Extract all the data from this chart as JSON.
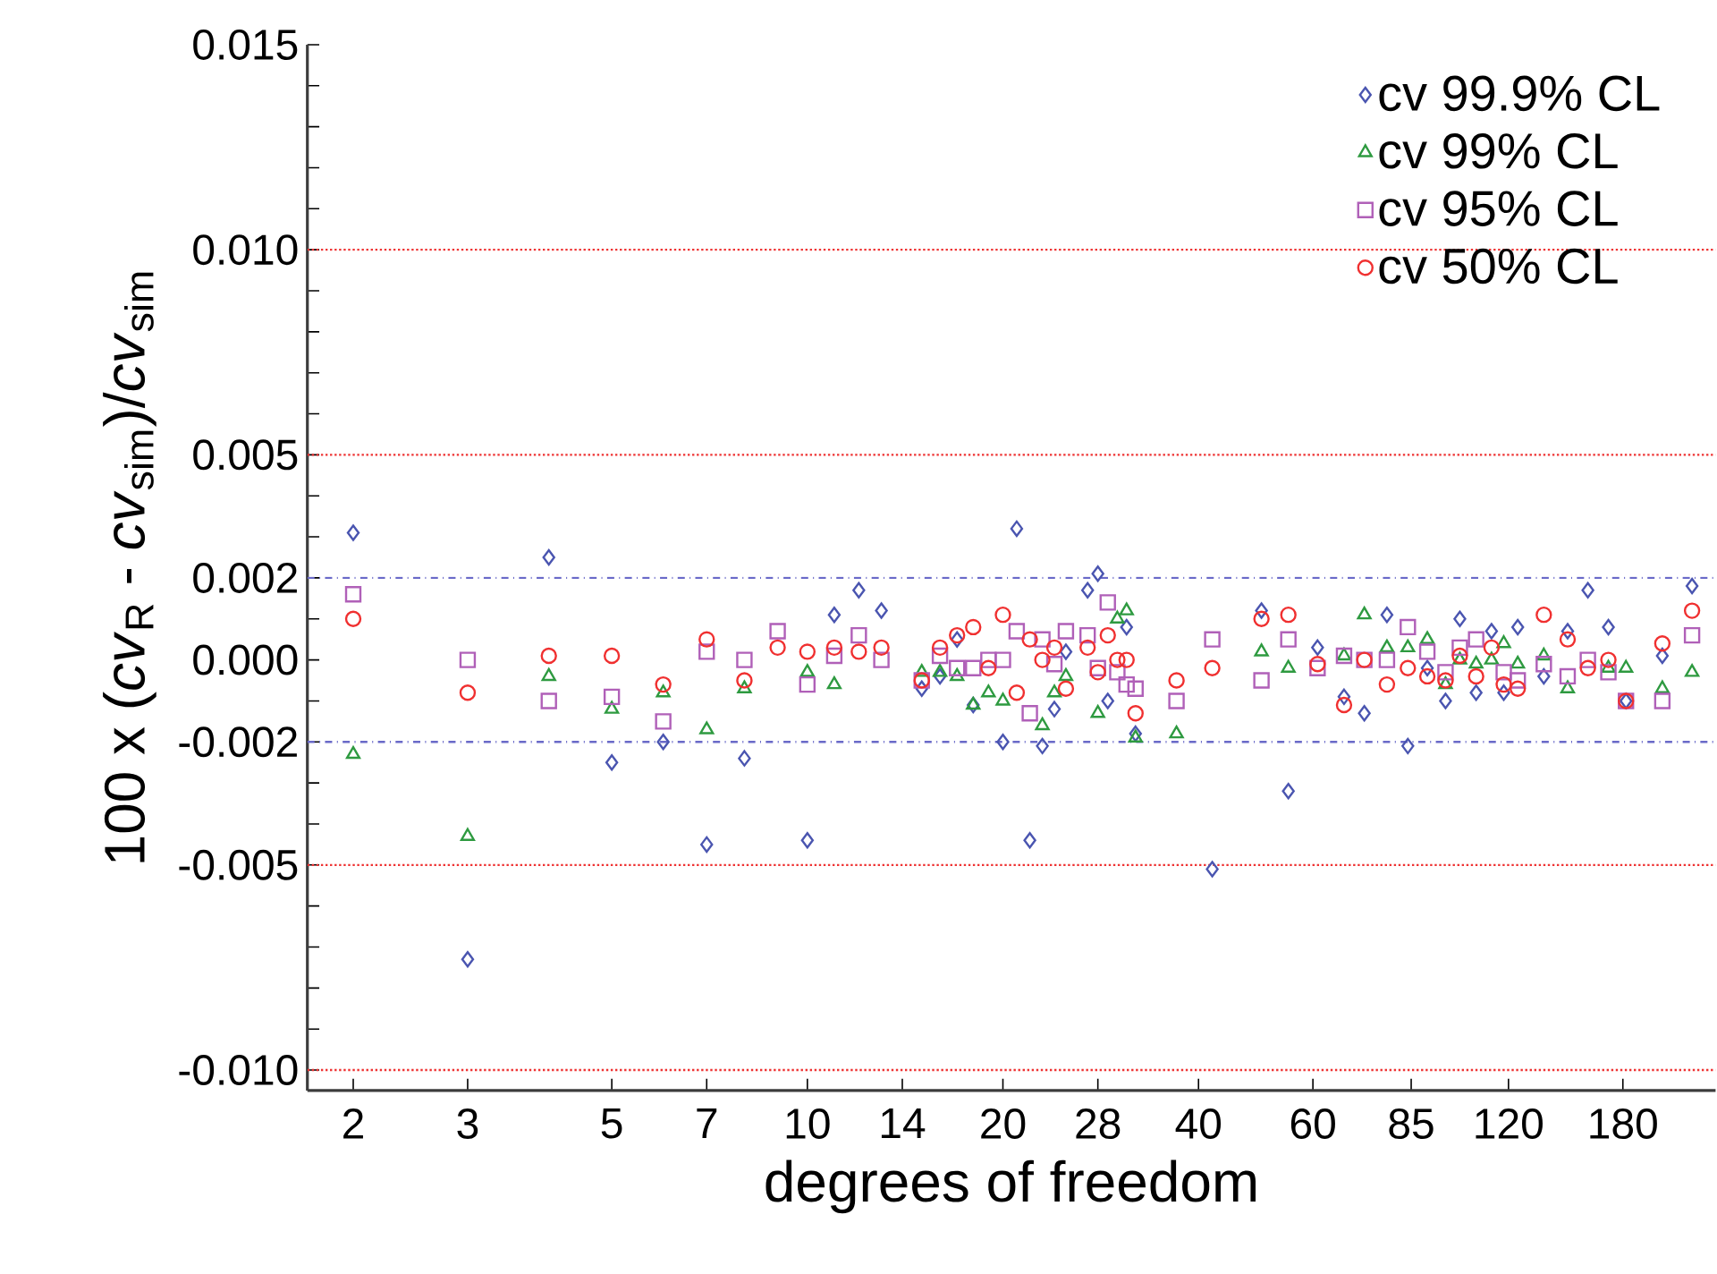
{
  "chart_data": {
    "type": "scatter",
    "xlabel": "degrees of freedom",
    "ylabel": "100 x (*cv*$_{R}$ - *cv*$_{sim}$)/*cv*$_{sim}$",
    "log": "x",
    "legend": "top right",
    "grid": false,
    "xlim": [
      1.7,
      250
    ],
    "ylim": [
      -0.0105,
      0.015
    ],
    "xticks": [
      2,
      3,
      5,
      7,
      10,
      14,
      20,
      28,
      40,
      60,
      85,
      120,
      180
    ],
    "yticks": [
      {
        "value": -0.01,
        "label": "-0.010"
      },
      {
        "value": -0.009,
        "label": null
      },
      {
        "value": -0.008,
        "label": null
      },
      {
        "value": -0.007,
        "label": null
      },
      {
        "value": -0.006,
        "label": null
      },
      {
        "value": -0.005,
        "label": "-0.005"
      },
      {
        "value": -0.004,
        "label": null
      },
      {
        "value": -0.003,
        "label": null
      },
      {
        "value": -0.002,
        "label": "-0.002"
      },
      {
        "value": -0.001,
        "label": null
      },
      {
        "value": 0.0,
        "label": "0.000"
      },
      {
        "value": 0.001,
        "label": null
      },
      {
        "value": 0.002,
        "label": "0.002"
      },
      {
        "value": 0.003,
        "label": null
      },
      {
        "value": 0.004,
        "label": null
      },
      {
        "value": 0.005,
        "label": "0.005"
      },
      {
        "value": 0.006,
        "label": null
      },
      {
        "value": 0.007,
        "label": null
      },
      {
        "value": 0.008,
        "label": null
      },
      {
        "value": 0.009,
        "label": null
      },
      {
        "value": 0.01,
        "label": "0.010"
      },
      {
        "value": 0.011,
        "label": null
      },
      {
        "value": 0.012,
        "label": null
      },
      {
        "value": 0.013,
        "label": null
      },
      {
        "value": 0.014,
        "label": null
      },
      {
        "value": 0.015,
        "label": "0.015"
      }
    ],
    "ref_lines": [
      {
        "axis": "y",
        "value": 0.01,
        "color": "#ee3333",
        "line_style": "dotted"
      },
      {
        "axis": "y",
        "value": 0.005,
        "color": "#ee3333",
        "line_style": "dotted"
      },
      {
        "axis": "y",
        "value": 0.002,
        "color": "#6a6ac8",
        "line_style": "dashdot"
      },
      {
        "axis": "y",
        "value": -0.002,
        "color": "#6a6ac8",
        "line_style": "dashdot"
      },
      {
        "axis": "y",
        "value": -0.005,
        "color": "#ee3333",
        "line_style": "dotted"
      },
      {
        "axis": "y",
        "value": -0.01,
        "color": "#ee3333",
        "line_style": "dotted"
      }
    ],
    "series": [
      {
        "name": "cv 99.9% CL",
        "color": "#4a55b0",
        "marker": "diamond",
        "x": [
          2,
          3,
          4,
          5,
          6,
          7,
          8,
          10,
          11,
          12,
          13,
          15,
          16,
          17,
          18,
          20,
          21,
          22,
          23,
          24,
          25,
          27,
          28,
          29,
          31,
          32,
          42,
          50,
          55,
          61,
          67,
          72,
          78,
          84,
          90,
          96,
          101,
          107,
          113,
          118,
          124,
          136,
          148,
          159,
          171,
          182,
          207,
          230
        ],
        "values": [
          0.0031,
          -0.0073,
          0.0025,
          -0.0025,
          -0.002,
          -0.0045,
          -0.0024,
          -0.0044,
          0.0011,
          0.0017,
          0.0012,
          -0.0007,
          -0.0004,
          0.0005,
          -0.0011,
          -0.002,
          0.0032,
          -0.0044,
          -0.0021,
          -0.0012,
          0.0002,
          0.0017,
          0.0021,
          -0.001,
          0.0008,
          -0.0018,
          -0.0051,
          0.0012,
          -0.0032,
          0.0003,
          -0.0009,
          -0.0013,
          0.0011,
          -0.0021,
          -0.0002,
          -0.001,
          0.001,
          -0.0008,
          0.0007,
          -0.0008,
          0.0008,
          -0.0004,
          0.0007,
          0.0017,
          0.0008,
          -0.001,
          0.0001,
          0.0018
        ]
      },
      {
        "name": "cv 99% CL",
        "color": "#2e9a40",
        "marker": "triangle",
        "x": [
          2,
          3,
          4,
          5,
          6,
          7,
          8,
          10,
          11,
          15,
          16,
          17,
          18,
          19,
          20,
          23,
          24,
          25,
          28,
          30,
          31,
          32,
          37,
          50,
          55,
          67,
          72,
          78,
          84,
          90,
          96,
          101,
          107,
          113,
          118,
          124,
          136,
          148,
          171,
          182,
          207,
          230
        ],
        "values": [
          -0.0023,
          -0.0043,
          -0.0004,
          -0.0012,
          -0.0008,
          -0.0017,
          -0.0007,
          -0.0003,
          -0.0006,
          -0.0003,
          -0.0003,
          -0.0004,
          -0.0011,
          -0.0008,
          -0.001,
          -0.0016,
          -0.0008,
          -0.0004,
          -0.0013,
          0.001,
          0.0012,
          -0.0019,
          -0.0018,
          0.0002,
          -0.0002,
          0.0001,
          0.0011,
          0.0003,
          0.0003,
          0.0005,
          -0.0006,
          0,
          -0.0001,
          0,
          0.0004,
          -0.0001,
          0.0001,
          -0.0007,
          -0.0002,
          -0.0002,
          -0.0007,
          -0.0003
        ]
      },
      {
        "name": "cv 95% CL",
        "color": "#b060b8",
        "marker": "square",
        "x": [
          2,
          3,
          4,
          5,
          6,
          7,
          8,
          9,
          10,
          11,
          12,
          13,
          15,
          16,
          17,
          18,
          19,
          20,
          21,
          22,
          23,
          24,
          25,
          27,
          28,
          29,
          30,
          31,
          32,
          37,
          42,
          50,
          55,
          61,
          67,
          72,
          78,
          84,
          90,
          96,
          101,
          107,
          118,
          124,
          136,
          148,
          159,
          171,
          182,
          207,
          230
        ],
        "values": [
          0.0016,
          0,
          -0.001,
          -0.0009,
          -0.0015,
          0.0002,
          0,
          0.0007,
          -0.0006,
          0.0001,
          0.0006,
          0,
          -0.0005,
          0.0001,
          -0.0002,
          -0.0002,
          0,
          0,
          0.0007,
          -0.0013,
          0.0005,
          -0.0001,
          0.0007,
          0.0006,
          -0.0002,
          0.0014,
          -0.0003,
          -0.0006,
          -0.0007,
          -0.001,
          0.0005,
          -0.0005,
          0.0005,
          -0.0002,
          0.0001,
          0,
          0,
          0.0008,
          0.0002,
          -0.0003,
          0.0003,
          0.0005,
          -0.0003,
          -0.0005,
          -0.0001,
          -0.0004,
          0,
          -0.0003,
          -0.001,
          -0.001,
          0.0006
        ]
      },
      {
        "name": "cv 50% CL",
        "color": "#f03030",
        "marker": "circle",
        "x": [
          2,
          3,
          4,
          5,
          6,
          7,
          8,
          9,
          10,
          11,
          12,
          13,
          15,
          16,
          17,
          18,
          19,
          20,
          21,
          22,
          23,
          24,
          25,
          27,
          28,
          29,
          30,
          31,
          32,
          37,
          42,
          50,
          55,
          61,
          67,
          72,
          78,
          84,
          90,
          96,
          101,
          107,
          113,
          118,
          124,
          136,
          148,
          159,
          171,
          182,
          207,
          230
        ],
        "values": [
          0.001,
          -0.0008,
          0.0001,
          0.0001,
          -0.0006,
          0.0005,
          -0.0005,
          0.0003,
          0.0002,
          0.0003,
          0.0002,
          0.0003,
          -0.0005,
          0.0003,
          0.0006,
          0.0008,
          -0.0002,
          0.0011,
          -0.0008,
          0.0005,
          0,
          0.0003,
          -0.0007,
          0.0003,
          -0.0003,
          0.0006,
          0,
          0,
          -0.0013,
          -0.0005,
          -0.0002,
          0.001,
          0.0011,
          -0.0001,
          -0.0011,
          0,
          -0.0006,
          -0.0002,
          -0.0004,
          -0.0005,
          0.0001,
          -0.0004,
          0.0003,
          -0.0006,
          -0.0007,
          0.0011,
          0.0005,
          -0.0002,
          0,
          -0.001,
          0.0004,
          0.0012
        ]
      }
    ]
  }
}
